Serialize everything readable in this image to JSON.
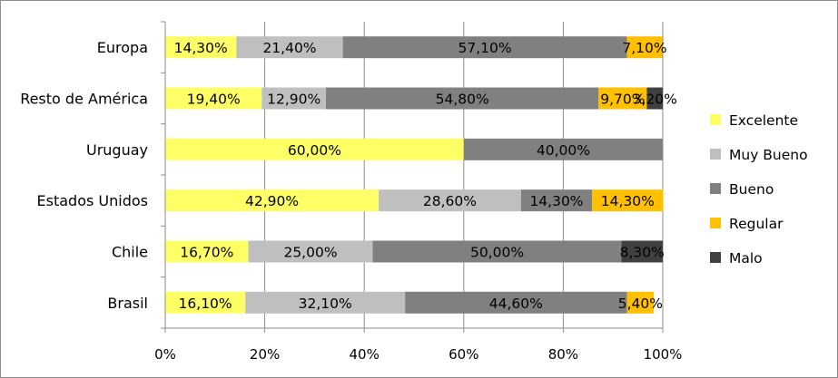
{
  "chart_data": {
    "type": "bar",
    "orientation": "horizontal",
    "stacked": "percent",
    "title": "",
    "xlabel": "",
    "ylabel": "",
    "xlim": [
      0,
      100
    ],
    "x_ticks": [
      "0%",
      "20%",
      "40%",
      "60%",
      "80%",
      "100%"
    ],
    "grid": "vertical",
    "legend_position": "right",
    "categories": [
      "Europa",
      "Resto de América",
      "Uruguay",
      "Estados Unidos",
      "Chile",
      "Brasil"
    ],
    "series": [
      {
        "name": "Excelente",
        "color": "#ffff66",
        "values": [
          14.3,
          19.4,
          60.0,
          42.9,
          16.7,
          16.1
        ],
        "labels": [
          "14,30%",
          "19,40%",
          "60,00%",
          "42,90%",
          "16,70%",
          "16,10%"
        ]
      },
      {
        "name": "Muy Bueno",
        "color": "#bfbfbf",
        "values": [
          21.4,
          12.9,
          0,
          28.6,
          25.0,
          32.1
        ],
        "labels": [
          "21,40%",
          "12,90%",
          "",
          "28,60%",
          "25,00%",
          "32,10%"
        ]
      },
      {
        "name": "Bueno",
        "color": "#808080",
        "values": [
          57.1,
          54.8,
          40.0,
          14.3,
          50.0,
          44.6
        ],
        "labels": [
          "57,10%",
          "54,80%",
          "40,00%",
          "14,30%",
          "50,00%",
          "44,60%"
        ]
      },
      {
        "name": "Regular",
        "color": "#ffc000",
        "values": [
          7.1,
          9.7,
          0,
          14.3,
          0,
          5.4
        ],
        "labels": [
          "7,10%",
          "9,70%",
          "",
          "14,30%",
          "",
          "5,40%"
        ]
      },
      {
        "name": "Malo",
        "color": "#404040",
        "values": [
          0,
          3.2,
          0,
          0,
          8.3,
          0
        ],
        "labels": [
          "",
          "3,20%",
          "",
          "",
          "8,30%",
          ""
        ]
      }
    ]
  }
}
